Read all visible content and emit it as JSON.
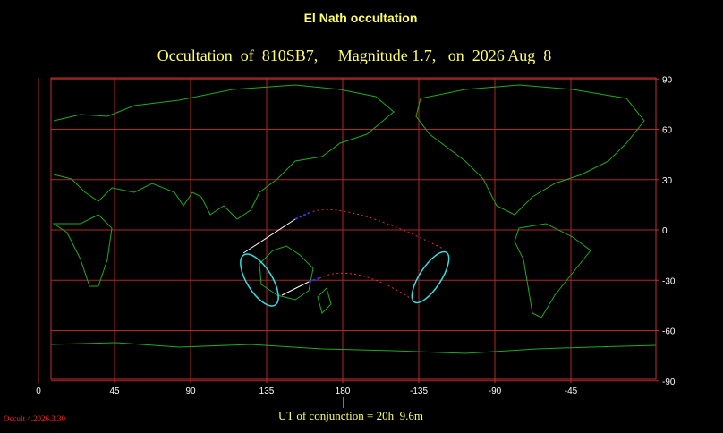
{
  "title": "El Nath occultation",
  "subtitle": "Occultation  of  810SB7,     Magnitude 1.7,   on  2026 Aug  8",
  "map": {
    "lon_ticks": [
      45,
      90,
      135,
      180,
      -135,
      -90,
      -45,
      0
    ],
    "lat_ticks": [
      90,
      60,
      30,
      0,
      -30,
      -60,
      -90
    ]
  },
  "conjunction": "UT of conjunction = 20h  9.6m",
  "version": "Occult 4.2026.3.30"
}
